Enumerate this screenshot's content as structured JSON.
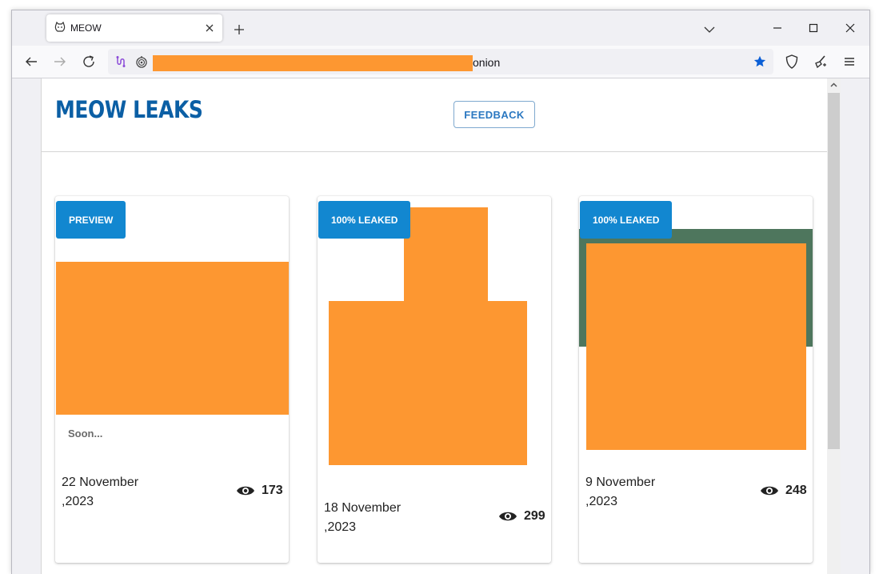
{
  "browser": {
    "tab": {
      "title": "MEOW",
      "favicon": "cat-face-icon"
    },
    "url_suffix": "onion",
    "bookmark_color": "#0b5fd6"
  },
  "page": {
    "brand": "MEOW LEAKS",
    "feedback_label": "FEEDBACK",
    "cards": [
      {
        "badge": "PREVIEW",
        "text": "Soon...",
        "date_line1": "22 November",
        "date_line2": ",2023",
        "views": "173"
      },
      {
        "badge": "100% LEAKED",
        "date_line1": "18 November",
        "date_line2": ",2023",
        "views": "299"
      },
      {
        "badge": "100% LEAKED",
        "date_line1": "9 November",
        "date_line2": ",2023",
        "views": "248"
      }
    ]
  },
  "colors": {
    "redaction": "#fd9731",
    "badge": "#1287d0",
    "brand": "#0b5fa5",
    "card3_bg": "#4e765d"
  }
}
